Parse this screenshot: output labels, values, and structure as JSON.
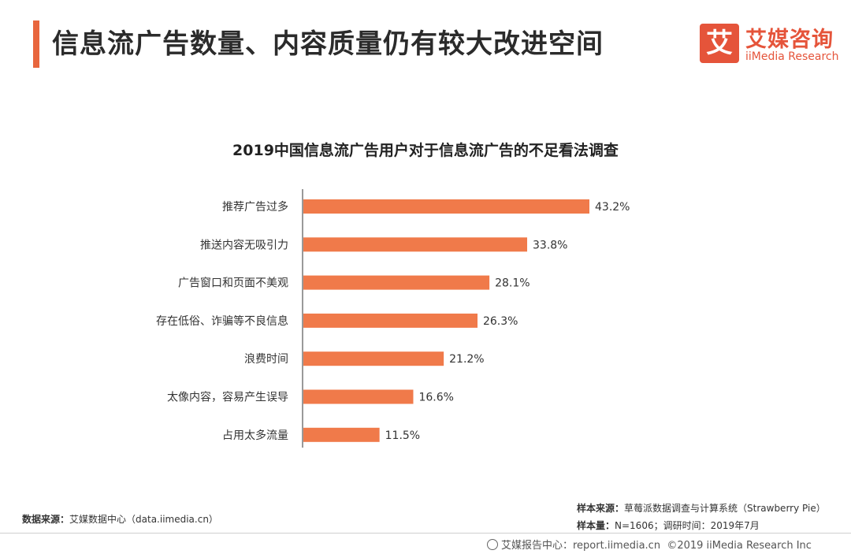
{
  "header": {
    "title": "信息流广告数量、内容质量仍有较大改进空间",
    "brand_mark": "艾",
    "brand_cn": "艾媒咨询",
    "brand_en": "iiMedia Research"
  },
  "colors": {
    "accent": "#e8663d",
    "bar": "#f07a4a",
    "brand": "#e5543a"
  },
  "chart_data": {
    "type": "bar",
    "orientation": "horizontal",
    "title": "2019中国信息流广告用户对于信息流广告的不足看法调查",
    "categories": [
      "推荐广告过多",
      "推送内容无吸引力",
      "广告窗口和页面不美观",
      "存在低俗、诈骗等不良信息",
      "浪费时间",
      "太像内容，容易产生误导",
      "占用太多流量"
    ],
    "values": [
      43.2,
      33.8,
      28.1,
      26.3,
      21.2,
      16.6,
      11.5
    ],
    "value_labels": [
      "43.2%",
      "33.8%",
      "28.1%",
      "26.3%",
      "21.2%",
      "16.6%",
      "11.5%"
    ],
    "unit": "%",
    "xlim": [
      0,
      50
    ],
    "grid": false,
    "legend": "none"
  },
  "footer": {
    "source_label": "数据来源：",
    "source_text": "艾媒数据中心（data.iimedia.cn）",
    "sample_source_label": "样本来源：",
    "sample_source_text": "草莓派数据调查与计算系统（Strawberry Pie）",
    "sample_size_label": "样本量：",
    "sample_size_text": "N=1606；调研时间：2019年7月",
    "report_center": "艾媒报告中心：report.iimedia.cn",
    "copyright": "©2019  iiMedia Research  Inc"
  }
}
